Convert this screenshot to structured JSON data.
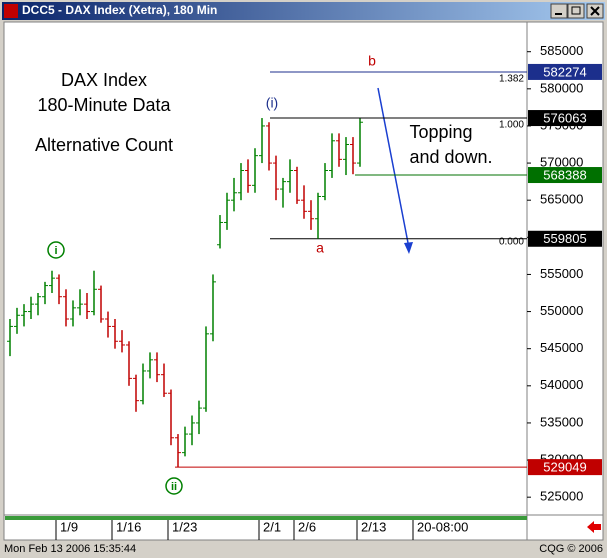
{
  "window": {
    "title": "DCC5 - DAX Index (Xetra), 180 Min"
  },
  "status": {
    "left": "Mon Feb 13 2006 15:35:44",
    "right": "CQG © 2006"
  },
  "chart_data": {
    "type": "ohlc",
    "annotations": {
      "heading": [
        "DAX Index",
        "180-Minute Data"
      ],
      "subheading": "Alternative Count",
      "comment": [
        "Topping",
        "and down."
      ],
      "waves": [
        "b",
        "(i)",
        "a",
        "i",
        "ii"
      ],
      "fib": [
        "1.382",
        "1.000",
        "0.000"
      ]
    },
    "categories": [
      null,
      null,
      null,
      null,
      null,
      null,
      null,
      "1/9",
      null,
      null,
      null,
      null,
      null,
      null,
      null,
      "1/16",
      null,
      null,
      null,
      null,
      null,
      null,
      null,
      "1/23",
      null,
      null,
      null,
      null,
      null,
      null,
      null,
      null,
      null,
      null,
      null,
      null,
      "2/1",
      null,
      null,
      null,
      null,
      "2/6",
      null,
      null,
      null,
      null,
      null,
      null,
      null,
      null,
      "2/13",
      null,
      null,
      null,
      null,
      null,
      null,
      null,
      "20-08:00",
      null
    ],
    "open": [
      546000,
      548000,
      549500,
      550000,
      551000,
      552000,
      553500,
      554500,
      552000,
      549000,
      550500,
      551000,
      550000,
      553000,
      549000,
      548000,
      546000,
      545500,
      541000,
      538000,
      542000,
      543500,
      541500,
      539000,
      533000,
      531000,
      533500,
      535000,
      537000,
      547000,
      559000,
      562000,
      565000,
      566000,
      569000,
      567000,
      571000,
      575000,
      570000,
      566500,
      567500,
      569000,
      565000,
      563500,
      562500,
      565500,
      569000,
      573000,
      570500,
      572500,
      570000,
      null,
      null,
      null,
      null,
      null,
      null,
      null,
      null,
      null
    ],
    "high": [
      549000,
      550500,
      551000,
      552000,
      552500,
      554000,
      555500,
      555000,
      553000,
      551500,
      553000,
      552500,
      555500,
      553500,
      550000,
      549000,
      547500,
      546000,
      541500,
      543000,
      544500,
      544500,
      543000,
      539500,
      533500,
      534500,
      536000,
      538000,
      548000,
      555000,
      563000,
      566000,
      568000,
      570000,
      570500,
      572000,
      576063,
      575500,
      571000,
      568000,
      570500,
      569500,
      567000,
      565000,
      566000,
      570000,
      574000,
      574000,
      573500,
      573500,
      576000,
      null,
      null,
      null,
      null,
      null,
      null,
      null,
      null,
      null
    ],
    "low": [
      544000,
      547000,
      548000,
      549000,
      549500,
      551000,
      552500,
      551000,
      548000,
      548000,
      549500,
      549000,
      549500,
      548500,
      546500,
      545000,
      544500,
      540000,
      536500,
      537500,
      541000,
      540500,
      538500,
      532000,
      529049,
      530500,
      532000,
      533500,
      536500,
      546000,
      558500,
      561000,
      563500,
      565000,
      566000,
      566000,
      570000,
      569000,
      565000,
      564000,
      566000,
      564500,
      562500,
      561000,
      559805,
      565000,
      568000,
      569500,
      568388,
      568500,
      569500,
      null,
      null,
      null,
      null,
      null,
      null,
      null,
      null,
      null
    ],
    "close": [
      548000,
      549500,
      550000,
      551000,
      552000,
      553500,
      554500,
      552000,
      549000,
      550500,
      551000,
      550000,
      553000,
      549000,
      548000,
      546000,
      545500,
      541000,
      538000,
      542000,
      543500,
      541500,
      539000,
      533000,
      531000,
      533500,
      535000,
      537000,
      547000,
      554000,
      562000,
      565000,
      566000,
      569000,
      567000,
      571000,
      575000,
      570000,
      566500,
      567500,
      569000,
      565000,
      563500,
      562500,
      565500,
      569000,
      573000,
      570500,
      572500,
      570000,
      575500,
      null,
      null,
      null,
      null,
      null,
      null,
      null,
      null,
      null
    ],
    "up_color": "#008000",
    "down_color": "#c00000",
    "ylim": [
      522600,
      589000
    ],
    "yticks": [
      525000,
      530000,
      535000,
      540000,
      545000,
      550000,
      555000,
      560000,
      565000,
      570000,
      575000,
      580000,
      585000
    ],
    "levels": [
      {
        "value": 582274,
        "color": "#1c2f8c",
        "label_color": "#ffffff"
      },
      {
        "value": 576063,
        "color": "#000000",
        "label_color": "#ffffff"
      },
      {
        "value": 568388,
        "color": "#007000",
        "label_color": "#ffffff"
      },
      {
        "value": 559805,
        "color": "#000000",
        "label_color": "#ffffff"
      },
      {
        "value": 529049,
        "color": "#c00000",
        "label_color": "#ffffff"
      }
    ]
  }
}
